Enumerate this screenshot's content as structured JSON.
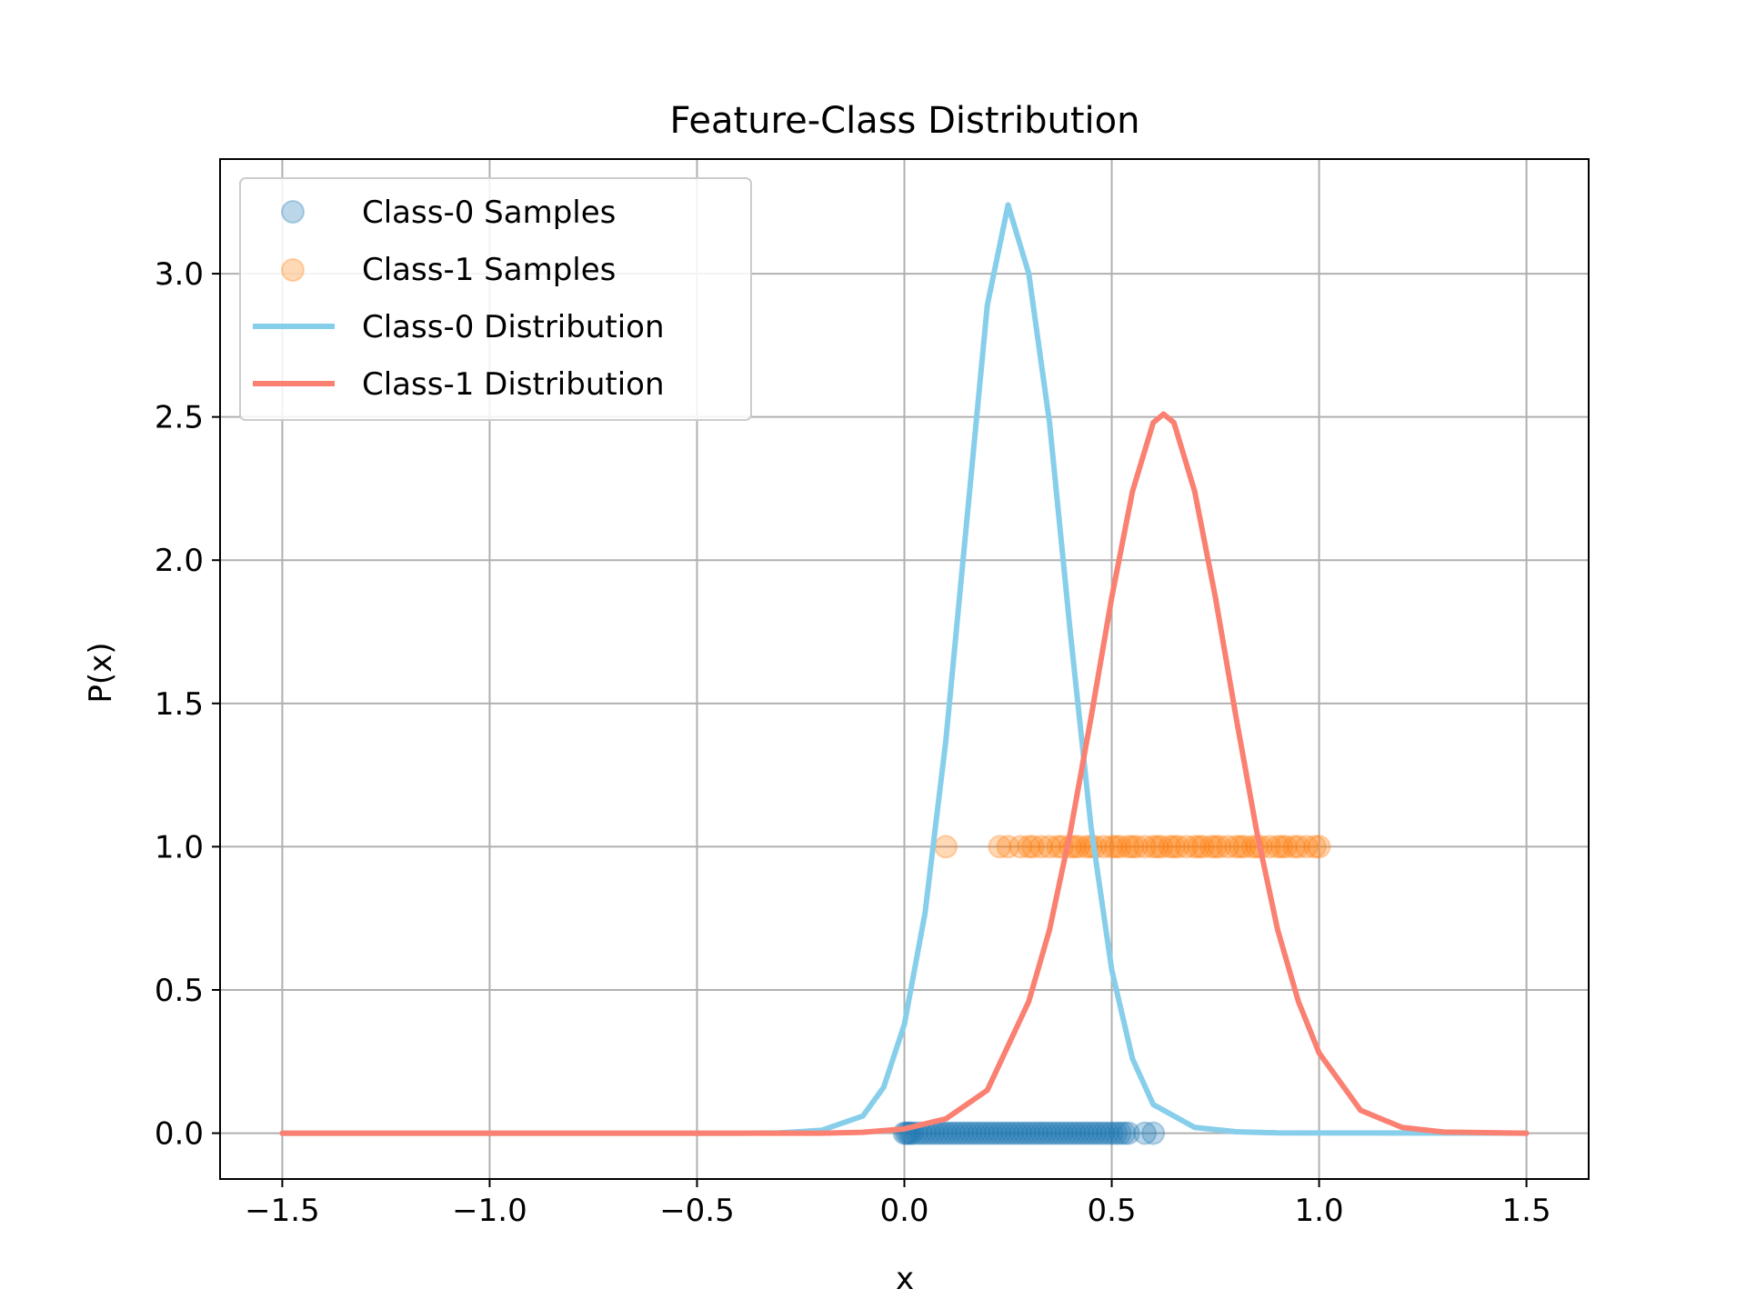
{
  "chart_data": {
    "type": "scatter",
    "title": "Feature-Class Distribution",
    "xlabel": "x",
    "ylabel": "P(x)",
    "xlim": [
      -1.65,
      1.65
    ],
    "ylim": [
      -0.16,
      3.4
    ],
    "xticks": [
      -1.5,
      -1.0,
      -0.5,
      0.0,
      0.5,
      1.0,
      1.5
    ],
    "xtick_labels": [
      "−1.5",
      "−1.0",
      "−0.5",
      "0.0",
      "0.5",
      "1.0",
      "1.5"
    ],
    "yticks": [
      0.0,
      0.5,
      1.0,
      1.5,
      2.0,
      2.5,
      3.0
    ],
    "ytick_labels": [
      "0.0",
      "0.5",
      "1.0",
      "1.5",
      "2.0",
      "2.5",
      "3.0"
    ],
    "grid": true,
    "legend_position": "top-left",
    "series": [
      {
        "name": "Class-0 Samples",
        "kind": "scatter",
        "color": "#1f77b4",
        "alpha": 0.3,
        "x": [
          0.0,
          0.005,
          0.01,
          0.015,
          0.02,
          0.03,
          0.04,
          0.05,
          0.06,
          0.07,
          0.08,
          0.09,
          0.1,
          0.11,
          0.12,
          0.13,
          0.14,
          0.15,
          0.16,
          0.17,
          0.18,
          0.19,
          0.2,
          0.21,
          0.22,
          0.23,
          0.24,
          0.25,
          0.26,
          0.27,
          0.28,
          0.29,
          0.3,
          0.31,
          0.32,
          0.33,
          0.34,
          0.35,
          0.36,
          0.37,
          0.38,
          0.39,
          0.4,
          0.41,
          0.42,
          0.43,
          0.44,
          0.45,
          0.46,
          0.47,
          0.48,
          0.49,
          0.5,
          0.51,
          0.52,
          0.53,
          0.54,
          0.58,
          0.6
        ],
        "y": [
          0,
          0,
          0,
          0,
          0,
          0,
          0,
          0,
          0,
          0,
          0,
          0,
          0,
          0,
          0,
          0,
          0,
          0,
          0,
          0,
          0,
          0,
          0,
          0,
          0,
          0,
          0,
          0,
          0,
          0,
          0,
          0,
          0,
          0,
          0,
          0,
          0,
          0,
          0,
          0,
          0,
          0,
          0,
          0,
          0,
          0,
          0,
          0,
          0,
          0,
          0,
          0,
          0,
          0,
          0,
          0,
          0,
          0,
          0
        ]
      },
      {
        "name": "Class-1 Samples",
        "kind": "scatter",
        "color": "#ff7f0e",
        "alpha": 0.3,
        "x": [
          0.1,
          0.23,
          0.25,
          0.28,
          0.3,
          0.31,
          0.33,
          0.35,
          0.37,
          0.38,
          0.4,
          0.41,
          0.42,
          0.44,
          0.45,
          0.46,
          0.48,
          0.5,
          0.51,
          0.52,
          0.54,
          0.55,
          0.56,
          0.58,
          0.6,
          0.61,
          0.62,
          0.64,
          0.65,
          0.66,
          0.68,
          0.7,
          0.71,
          0.72,
          0.74,
          0.75,
          0.76,
          0.78,
          0.8,
          0.81,
          0.82,
          0.84,
          0.85,
          0.86,
          0.88,
          0.9,
          0.91,
          0.92,
          0.94,
          0.95,
          0.97,
          0.99,
          1.0
        ],
        "y": [
          1,
          1,
          1,
          1,
          1,
          1,
          1,
          1,
          1,
          1,
          1,
          1,
          1,
          1,
          1,
          1,
          1,
          1,
          1,
          1,
          1,
          1,
          1,
          1,
          1,
          1,
          1,
          1,
          1,
          1,
          1,
          1,
          1,
          1,
          1,
          1,
          1,
          1,
          1,
          1,
          1,
          1,
          1,
          1,
          1,
          1,
          1,
          1,
          1,
          1,
          1,
          1,
          1
        ]
      },
      {
        "name": "Class-0 Distribution",
        "kind": "line",
        "color": "#87ceeb",
        "x": [
          -1.5,
          -0.4,
          -0.3,
          -0.2,
          -0.1,
          -0.05,
          0.0,
          0.05,
          0.1,
          0.15,
          0.2,
          0.25,
          0.3,
          0.35,
          0.4,
          0.45,
          0.5,
          0.55,
          0.6,
          0.7,
          0.8,
          0.9,
          1.5
        ],
        "y": [
          0.0,
          0.0,
          0.001,
          0.01,
          0.06,
          0.16,
          0.38,
          0.77,
          1.37,
          2.13,
          2.89,
          3.24,
          3.0,
          2.48,
          1.75,
          1.07,
          0.57,
          0.26,
          0.1,
          0.02,
          0.005,
          0.001,
          0.0
        ]
      },
      {
        "name": "Class-1 Distribution",
        "kind": "line",
        "color": "#fa8072",
        "x": [
          -1.5,
          -0.2,
          -0.1,
          0.0,
          0.1,
          0.2,
          0.3,
          0.35,
          0.4,
          0.45,
          0.5,
          0.55,
          0.6,
          0.625,
          0.65,
          0.7,
          0.75,
          0.8,
          0.85,
          0.9,
          0.95,
          1.0,
          1.1,
          1.2,
          1.3,
          1.5
        ],
        "y": [
          0.0,
          0.0,
          0.003,
          0.015,
          0.05,
          0.15,
          0.46,
          0.71,
          1.05,
          1.45,
          1.87,
          2.24,
          2.48,
          2.51,
          2.48,
          2.24,
          1.87,
          1.45,
          1.05,
          0.71,
          0.46,
          0.28,
          0.08,
          0.02,
          0.004,
          0.0
        ]
      }
    ]
  }
}
